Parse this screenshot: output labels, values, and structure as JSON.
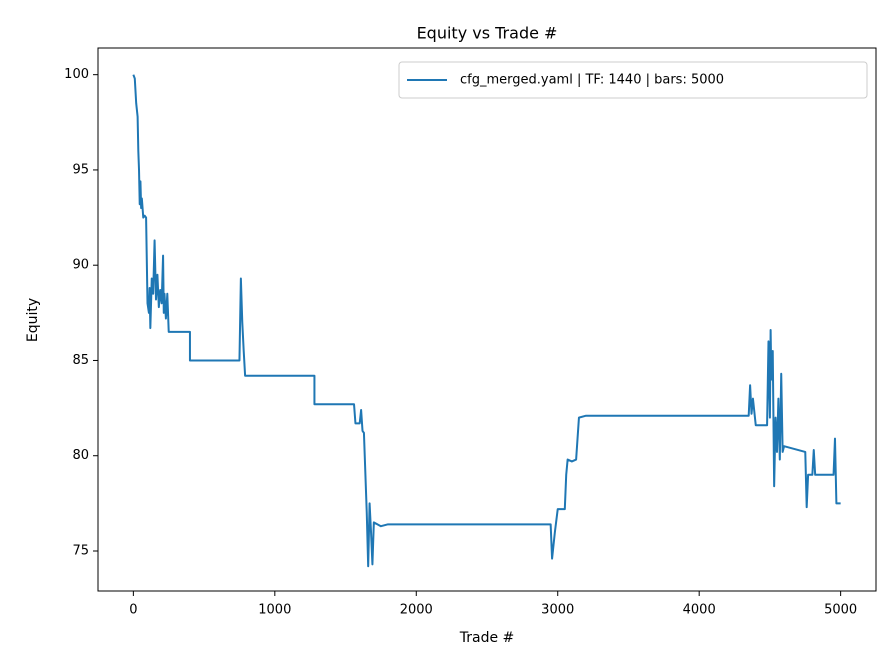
{
  "chart_data": {
    "type": "line",
    "title": "Equity vs Trade #",
    "xlabel": "Trade #",
    "ylabel": "Equity",
    "x": [
      0,
      10,
      20,
      30,
      35,
      40,
      45,
      50,
      55,
      60,
      70,
      80,
      90,
      100,
      110,
      115,
      120,
      130,
      140,
      150,
      160,
      170,
      180,
      190,
      200,
      210,
      215,
      220,
      230,
      240,
      250,
      400,
      400,
      750,
      760,
      770,
      780,
      790,
      1280,
      1280,
      1560,
      1570,
      1600,
      1610,
      1620,
      1630,
      1650,
      1660,
      1670,
      1680,
      1690,
      1700,
      1750,
      1800,
      1900,
      2950,
      2960,
      2980,
      3000,
      3050,
      3060,
      3070,
      3100,
      3130,
      3150,
      3200,
      4350,
      4360,
      4370,
      4380,
      4400,
      4480,
      4490,
      4500,
      4505,
      4510,
      4520,
      4530,
      4540,
      4550,
      4560,
      4570,
      4580,
      4590,
      4600,
      4750,
      4760,
      4770,
      4800,
      4810,
      4820,
      4950,
      4960,
      4970,
      5000
    ],
    "series": [
      {
        "name": "cfg_merged.yaml | TF: 1440 | bars: 5000",
        "color": "#1f77b4",
        "values": [
          100,
          99.8,
          98.5,
          97.8,
          96,
          95,
          93.2,
          94.4,
          93,
          93.5,
          92.5,
          92.6,
          92.5,
          88,
          87.5,
          88.8,
          86.7,
          89.3,
          88.5,
          91.3,
          88.2,
          89.5,
          87.8,
          88.7,
          88,
          90.5,
          87.5,
          88.5,
          87.2,
          88.5,
          86.5,
          86.5,
          85,
          85,
          89.3,
          87,
          85.5,
          84.2,
          84.2,
          82.7,
          82.7,
          81.7,
          81.7,
          82.4,
          81.3,
          81.2,
          77,
          74.2,
          77.5,
          76,
          74.3,
          76.5,
          76.3,
          76.4,
          76.4,
          76.4,
          74.6,
          76,
          77.2,
          77.2,
          79,
          79.8,
          79.7,
          79.8,
          82,
          82.1,
          82.1,
          83.7,
          82.2,
          83,
          81.6,
          81.6,
          86,
          82,
          86.6,
          84,
          85.5,
          78.4,
          82,
          80.2,
          83,
          79.8,
          84.3,
          80.2,
          80.5,
          80.2,
          77.3,
          79,
          79,
          80.3,
          79,
          79,
          80.9,
          77.5,
          77.5
        ]
      }
    ],
    "xlim": [
      -250,
      5250
    ],
    "ylim": [
      72.9,
      101.4
    ],
    "xticks": [
      0,
      1000,
      2000,
      3000,
      4000,
      5000
    ],
    "yticks": [
      75,
      80,
      85,
      90,
      95,
      100
    ],
    "legend": "upper right",
    "grid": false
  }
}
